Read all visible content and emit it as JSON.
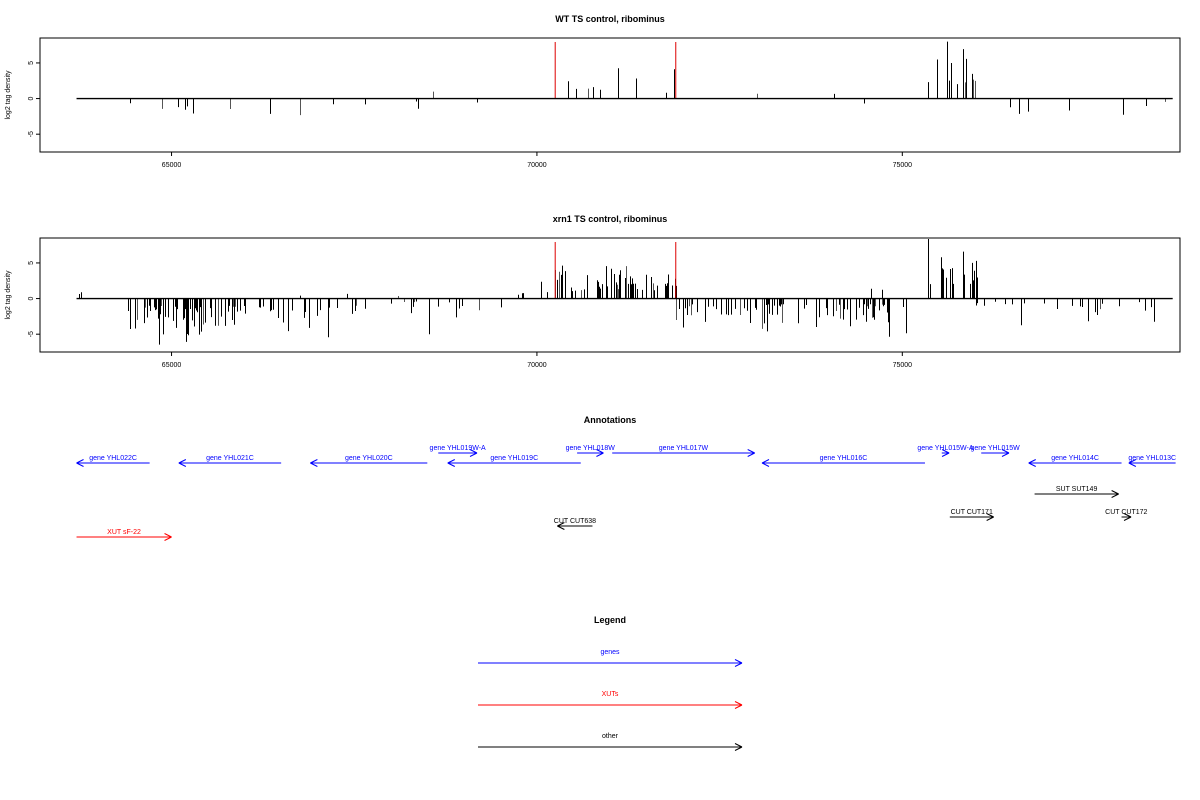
{
  "chart_data": [
    {
      "type": "bar",
      "title": "WT TS control, ribominus",
      "ylabel": "log2 tag density",
      "xlim": [
        63200,
        78800
      ],
      "ylim": [
        -7.5,
        8.5
      ],
      "xticks": [
        65000,
        70000,
        75000
      ],
      "xtick_labels": [
        "65000",
        "70000",
        "75000"
      ],
      "yticks": [
        -5,
        0,
        5
      ],
      "ytick_labels": [
        "-5",
        "0",
        "5"
      ],
      "grid": false,
      "legend": "none",
      "baseline": [
        63700,
        78700
      ],
      "markers": [
        70250,
        71900
      ],
      "marker_color": "#dd0000",
      "bar_color": "#000000",
      "density_segments": [
        {
          "start": 63700,
          "end": 64400,
          "density": 0.006,
          "sign": 1,
          "min": 0.3,
          "max": 1.6,
          "seed": 11
        },
        {
          "start": 64400,
          "end": 66000,
          "density": 0.06,
          "sign": -1,
          "min": 0.5,
          "max": 4.0,
          "seed": 12
        },
        {
          "start": 66000,
          "end": 67700,
          "density": 0.025,
          "sign": -1,
          "min": 0.5,
          "max": 3.8,
          "seed": 13
        },
        {
          "start": 67700,
          "end": 68700,
          "density": 0.018,
          "sign": 1,
          "min": 0.3,
          "max": 3.0,
          "seed": 14
        },
        {
          "start": 68200,
          "end": 69500,
          "density": 0.015,
          "sign": -1,
          "min": 0.3,
          "max": 2.5,
          "seed": 15
        },
        {
          "start": 69600,
          "end": 70250,
          "density": 0.01,
          "sign": 1,
          "min": 0.5,
          "max": 3.0,
          "seed": 16
        },
        {
          "start": 70250,
          "end": 71900,
          "density": 0.08,
          "sign": 1,
          "min": 0.8,
          "max": 4.6,
          "seed": 17
        },
        {
          "start": 71900,
          "end": 75300,
          "density": 0.012,
          "sign": -1,
          "min": 0.3,
          "max": 3.2,
          "seed": 18
        },
        {
          "start": 73000,
          "end": 75000,
          "density": 0.005,
          "sign": 1,
          "min": 0.3,
          "max": 1.4,
          "seed": 19
        },
        {
          "start": 75350,
          "end": 76000,
          "density": 0.25,
          "sign": 1,
          "min": 2.0,
          "max": 8.0,
          "seed": 20
        },
        {
          "start": 76000,
          "end": 78600,
          "density": 0.035,
          "sign": -1,
          "min": 0.3,
          "max": 3.5,
          "seed": 21
        }
      ]
    },
    {
      "type": "bar",
      "title": "xrn1 TS control, ribominus",
      "ylabel": "log2 tag density",
      "xlim": [
        63200,
        78800
      ],
      "ylim": [
        -7.5,
        8.5
      ],
      "xticks": [
        65000,
        70000,
        75000
      ],
      "xtick_labels": [
        "65000",
        "70000",
        "75000"
      ],
      "yticks": [
        -5,
        0,
        5
      ],
      "ytick_labels": [
        "-5",
        "0",
        "5"
      ],
      "grid": false,
      "legend": "none",
      "baseline": [
        63700,
        78700
      ],
      "markers": [
        70250,
        71900
      ],
      "marker_color": "#dd0000",
      "bar_color": "#000000",
      "density_segments": [
        {
          "start": 63700,
          "end": 64300,
          "density": 0.06,
          "sign": 1,
          "min": 0.5,
          "max": 4.0,
          "seed": 31
        },
        {
          "start": 63700,
          "end": 64300,
          "density": 0.01,
          "sign": -1,
          "min": 0.3,
          "max": 2.0,
          "seed": 32
        },
        {
          "start": 64400,
          "end": 66000,
          "density": 0.3,
          "sign": -1,
          "min": 1.0,
          "max": 7.0,
          "seed": 33
        },
        {
          "start": 66200,
          "end": 67600,
          "density": 0.25,
          "sign": -1,
          "min": 1.0,
          "max": 6.5,
          "seed": 34
        },
        {
          "start": 66000,
          "end": 69800,
          "density": 0.01,
          "sign": 1,
          "min": 0.3,
          "max": 2.5,
          "seed": 35
        },
        {
          "start": 67600,
          "end": 69800,
          "density": 0.06,
          "sign": -1,
          "min": 0.4,
          "max": 5.0,
          "seed": 36
        },
        {
          "start": 69700,
          "end": 70250,
          "density": 0.08,
          "sign": 1,
          "min": 0.5,
          "max": 3.5,
          "seed": 37
        },
        {
          "start": 70250,
          "end": 71900,
          "density": 0.35,
          "sign": 1,
          "min": 1.0,
          "max": 5.5,
          "seed": 38
        },
        {
          "start": 71900,
          "end": 75050,
          "density": 0.28,
          "sign": -1,
          "min": 0.8,
          "max": 5.5,
          "seed": 39
        },
        {
          "start": 72000,
          "end": 75000,
          "density": 0.01,
          "sign": 1,
          "min": 0.3,
          "max": 1.6,
          "seed": 40
        },
        {
          "start": 75350,
          "end": 76050,
          "density": 0.3,
          "sign": 1,
          "min": 2.0,
          "max": 8.5,
          "seed": 41
        },
        {
          "start": 76000,
          "end": 78500,
          "density": 0.12,
          "sign": -1,
          "min": 0.4,
          "max": 4.5,
          "seed": 42
        },
        {
          "start": 76000,
          "end": 78500,
          "density": 0.006,
          "sign": 1,
          "min": 0.3,
          "max": 2.5,
          "seed": 43
        }
      ]
    }
  ],
  "annotations": {
    "title": "Annotations",
    "xlim": [
      63200,
      78800
    ],
    "tracks": [
      {
        "label": "gene YHL022C",
        "kind": "gene",
        "start": 63700,
        "end": 64700,
        "strand": "-",
        "row": 0
      },
      {
        "label": "gene YHL021C",
        "kind": "gene",
        "start": 65100,
        "end": 66500,
        "strand": "-",
        "row": 0
      },
      {
        "label": "gene YHL020C",
        "kind": "gene",
        "start": 66900,
        "end": 68500,
        "strand": "-",
        "row": 0
      },
      {
        "label": "gene YHL019W-A",
        "kind": "gene",
        "start": 68650,
        "end": 69180,
        "strand": "+",
        "row": 1
      },
      {
        "label": "gene YHL019C",
        "kind": "gene",
        "start": 68780,
        "end": 70600,
        "strand": "-",
        "row": 0
      },
      {
        "label": "gene YHL018W",
        "kind": "gene",
        "start": 70550,
        "end": 70910,
        "strand": "+",
        "row": 1
      },
      {
        "label": "gene YHL017W",
        "kind": "gene",
        "start": 71030,
        "end": 72980,
        "strand": "+",
        "row": 1
      },
      {
        "label": "gene YHL016C",
        "kind": "gene",
        "start": 73080,
        "end": 75310,
        "strand": "-",
        "row": 0
      },
      {
        "label": "gene YHL015W-A",
        "kind": "gene",
        "start": 75540,
        "end": 75640,
        "strand": "+",
        "row": 1
      },
      {
        "label": "gene YHL015W",
        "kind": "gene",
        "start": 76080,
        "end": 76460,
        "strand": "+",
        "row": 1
      },
      {
        "label": "gene YHL014C",
        "kind": "gene",
        "start": 76730,
        "end": 78000,
        "strand": "-",
        "row": 0
      },
      {
        "label": "gene YHL013C",
        "kind": "gene",
        "start": 78100,
        "end": 78740,
        "strand": "-",
        "row": 0
      },
      {
        "label": "SUT SUT149",
        "kind": "other",
        "start": 76810,
        "end": 77960,
        "strand": "+",
        "row": 2
      },
      {
        "label": "CUT CUT171",
        "kind": "other",
        "start": 75650,
        "end": 76250,
        "strand": "+",
        "row": 3
      },
      {
        "label": "CUT CUT172",
        "kind": "other",
        "start": 78000,
        "end": 78130,
        "strand": "+",
        "row": 3
      },
      {
        "label": "CUT CUT638",
        "kind": "other",
        "start": 70280,
        "end": 70760,
        "strand": "-",
        "row": 4
      },
      {
        "label": "XUT sF-22",
        "kind": "xut",
        "start": 63700,
        "end": 65000,
        "strand": "+",
        "row": 5
      }
    ]
  },
  "legend": {
    "title": "Legend",
    "items": [
      {
        "label": "genes",
        "color": "#0000ff"
      },
      {
        "label": "XUTs",
        "color": "#ff0000"
      },
      {
        "label": "other",
        "color": "#000000"
      }
    ]
  },
  "colors": {
    "gene": "#0000ff",
    "xut": "#ff0000",
    "other": "#000000"
  }
}
